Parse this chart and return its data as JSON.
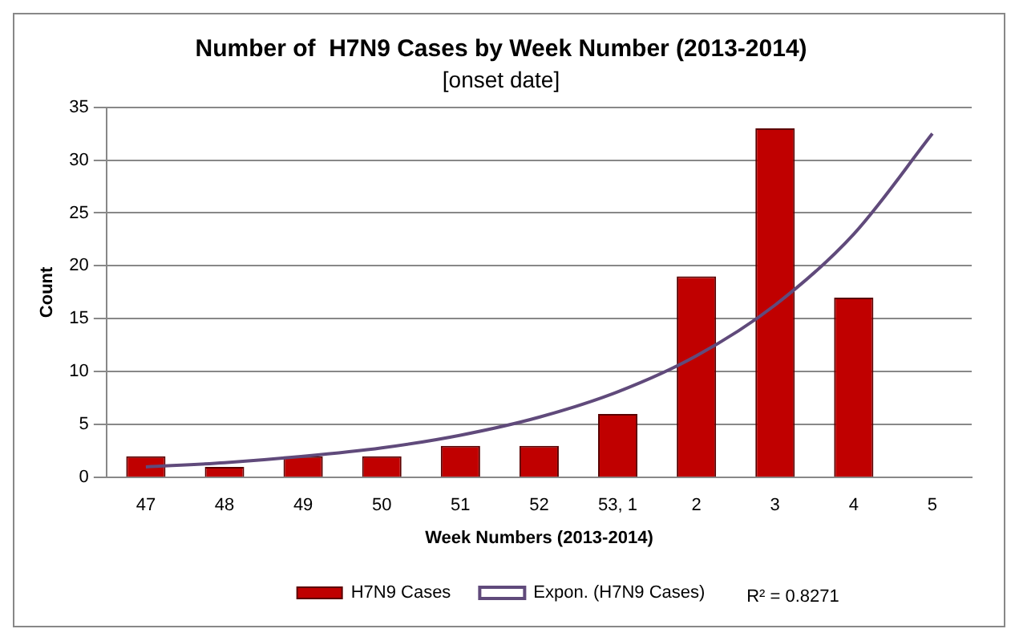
{
  "chart_data": {
    "type": "bar",
    "title": "Number of  H7N9 Cases by Week Number (2013-2014)",
    "subtitle": "[onset date]",
    "xlabel": "Week Numbers (2013-2014)",
    "ylabel": "Count",
    "categories": [
      "47",
      "48",
      "49",
      "50",
      "51",
      "52",
      "53, 1",
      "2",
      "3",
      "4",
      "5"
    ],
    "series": [
      {
        "name": "H7N9 Cases",
        "color": "#c00000",
        "values": [
          2,
          1,
          2,
          2,
          3,
          3,
          6,
          19,
          33,
          17,
          null
        ]
      },
      {
        "name": "Expon. (H7N9 Cases)",
        "type": "line",
        "color": "#604a7b",
        "marker": "none",
        "values": [
          1,
          1.4,
          2,
          2.8,
          4,
          5.7,
          8.1,
          11.5,
          16.3,
          23,
          32.5
        ]
      }
    ],
    "ylim": [
      0,
      35
    ],
    "yticks": [
      0,
      5,
      10,
      15,
      20,
      25,
      30,
      35
    ],
    "grid": "y",
    "legend": "bottom",
    "annotations": [
      "R² = 0.8271"
    ]
  }
}
